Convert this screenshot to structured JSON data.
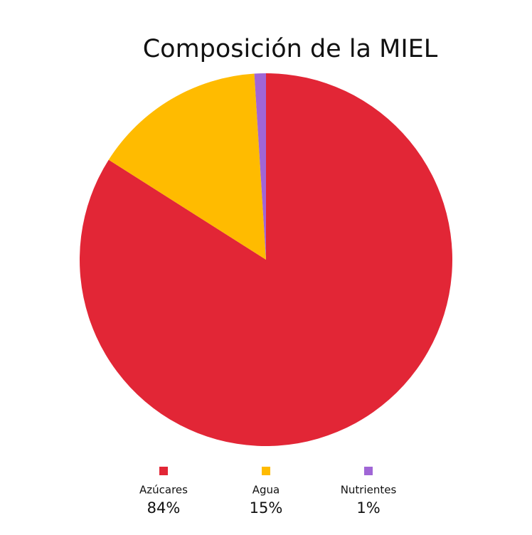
{
  "chart_data": {
    "type": "pie",
    "title": "Composición de la MIEL",
    "categories": [
      "Azúcares",
      "Agua",
      "Nutrientes"
    ],
    "values": [
      84,
      15,
      1
    ],
    "value_labels": [
      "84%",
      "15%",
      "1%"
    ],
    "colors": [
      "#e22636",
      "#ffbb00",
      "#a066d6"
    ]
  }
}
